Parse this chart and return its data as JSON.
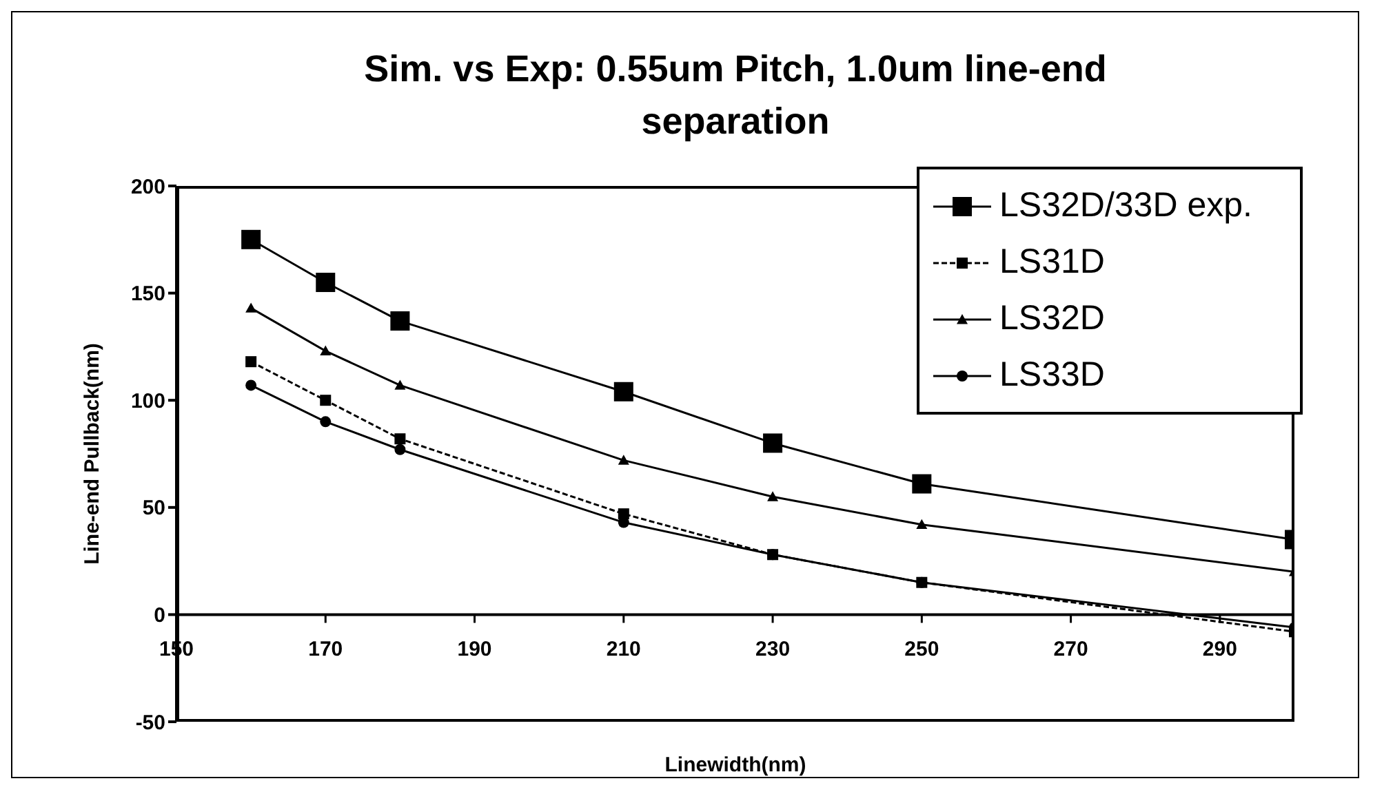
{
  "chart_data": {
    "type": "line",
    "title": "Sim. vs Exp: 0.55um Pitch, 1.0um line-end separation",
    "xlabel": "Linewidth(nm)",
    "ylabel": "Line-end Pullback(nm)",
    "x": [
      160,
      170,
      180,
      210,
      230,
      250,
      300
    ],
    "series": [
      {
        "name": "LS32D/33D exp.",
        "color": "#000000",
        "marker": "square",
        "line_style": "solid",
        "values": [
          175,
          155,
          137,
          104,
          80,
          61,
          35
        ]
      },
      {
        "name": "LS31D",
        "color": "#000000",
        "marker": "square",
        "line_style": "dashed",
        "values": [
          118,
          100,
          82,
          47,
          28,
          15,
          -8
        ]
      },
      {
        "name": "LS32D",
        "color": "#000000",
        "marker": "triangle",
        "line_style": "solid",
        "values": [
          143,
          123,
          107,
          72,
          55,
          42,
          20
        ]
      },
      {
        "name": "LS33D",
        "color": "#000000",
        "marker": "circle",
        "line_style": "solid",
        "values": [
          107,
          90,
          77,
          43,
          28,
          15,
          -6
        ]
      }
    ],
    "xlim": [
      150,
      300
    ],
    "xticks": [
      150,
      170,
      190,
      210,
      230,
      250,
      270,
      290
    ],
    "ylim": [
      -50,
      200
    ],
    "yticks": [
      -50,
      0,
      50,
      100,
      150,
      200
    ],
    "legend": "top right"
  }
}
